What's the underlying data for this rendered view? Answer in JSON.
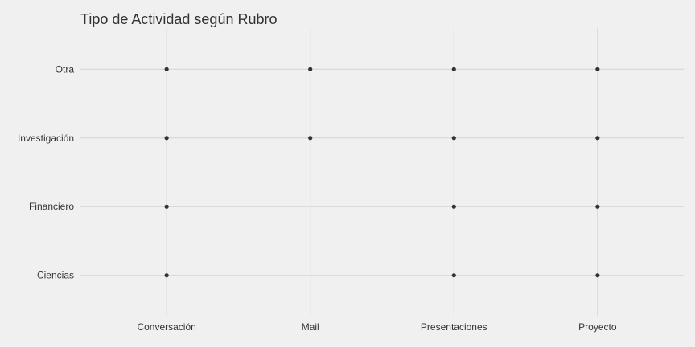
{
  "chart_data": {
    "type": "scatter",
    "title": "Tipo de Actividad según Rubro",
    "xlabel": "",
    "ylabel": "",
    "x_categories": [
      "Conversación",
      "Mail",
      "Presentaciones",
      "Proyecto"
    ],
    "y_categories": [
      "Ciencias",
      "Financiero",
      "Investigación",
      "Otra"
    ],
    "points": [
      {
        "x": "Conversación",
        "y": "Ciencias"
      },
      {
        "x": "Conversación",
        "y": "Financiero"
      },
      {
        "x": "Conversación",
        "y": "Investigación"
      },
      {
        "x": "Conversación",
        "y": "Otra"
      },
      {
        "x": "Mail",
        "y": "Investigación"
      },
      {
        "x": "Mail",
        "y": "Otra"
      },
      {
        "x": "Presentaciones",
        "y": "Ciencias"
      },
      {
        "x": "Presentaciones",
        "y": "Financiero"
      },
      {
        "x": "Presentaciones",
        "y": "Investigación"
      },
      {
        "x": "Presentaciones",
        "y": "Otra"
      },
      {
        "x": "Proyecto",
        "y": "Ciencias"
      },
      {
        "x": "Proyecto",
        "y": "Financiero"
      },
      {
        "x": "Proyecto",
        "y": "Investigación"
      },
      {
        "x": "Proyecto",
        "y": "Otra"
      }
    ],
    "grid": true,
    "legend": "none",
    "colors": {
      "background": "#f0f0f0",
      "gridline": "#d2d2d2",
      "point": "#333333",
      "text": "#333333"
    }
  }
}
